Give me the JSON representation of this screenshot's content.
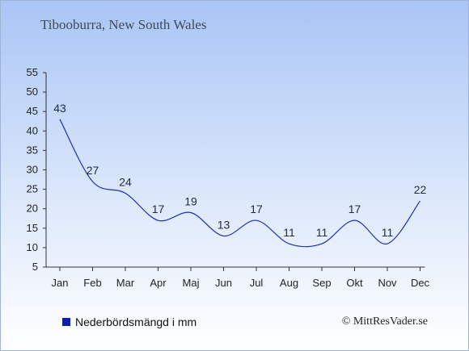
{
  "title": "Tibooburra, New South Wales",
  "legend": {
    "label": "Nederbördsmängd i mm"
  },
  "copyright": "© MittResVader.se",
  "colors": {
    "line": "#1f2fb3",
    "swatch": "#0a1fb0",
    "axis": "#333333",
    "label": "#1f2a44"
  },
  "chart_data": {
    "type": "line",
    "categories": [
      "Jan",
      "Feb",
      "Mar",
      "Apr",
      "Maj",
      "Jun",
      "Jul",
      "Aug",
      "Sep",
      "Okt",
      "Nov",
      "Dec"
    ],
    "series": [
      {
        "name": "Nederbördsmängd i mm",
        "values": [
          43,
          27,
          24,
          17,
          19,
          13,
          17,
          11,
          11,
          17,
          11,
          22
        ]
      }
    ],
    "ylim": [
      5,
      55
    ],
    "yticks": [
      5,
      10,
      15,
      20,
      25,
      30,
      35,
      40,
      45,
      50,
      55
    ],
    "grid": false,
    "legend_position": "bottom-left"
  }
}
